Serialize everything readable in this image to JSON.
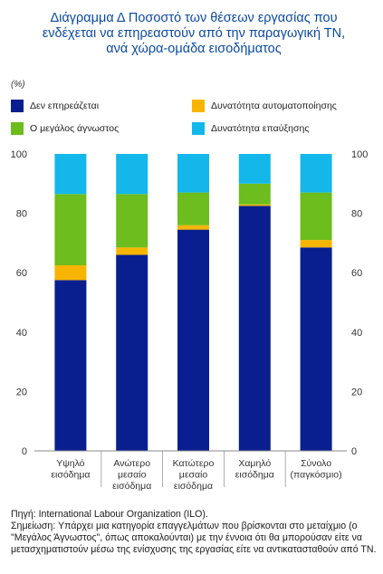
{
  "title_lines": [
    "Διάγραμμα Δ Ποσοστό των θέσεων εργασίας που",
    "ενδέχεται να επηρεαστούν από την παραγωγική ΤΝ,",
    "ανά χώρα-ομάδα εισοδήματος"
  ],
  "unit": "(%)",
  "colors": {
    "not_affected": "#0a1f8f",
    "automation": "#f8b500",
    "big_unknown": "#6cbd1d",
    "augmentation": "#14b7ea"
  },
  "legend": [
    {
      "key": "not_affected",
      "label": "Δεν επηρεάζεται"
    },
    {
      "key": "automation",
      "label": "Δυνατότητα αυτοματοποίησης"
    },
    {
      "key": "big_unknown",
      "label": "Ο μεγάλος άγνωστος"
    },
    {
      "key": "augmentation",
      "label": "Δυνατότητα επαύξησης"
    }
  ],
  "chart_data": {
    "type": "bar",
    "stacked": true,
    "categories": [
      [
        "Υψηλό",
        "εισόδημα"
      ],
      [
        "Ανώτερο",
        "μεσαίο",
        "εισόδημα"
      ],
      [
        "Κατώτερο",
        "μεσαίο",
        "εισόδημα"
      ],
      [
        "Χαμηλό",
        "εισόδημα"
      ],
      [
        "Σύνολο",
        "(παγκόσμιο)"
      ]
    ],
    "series": [
      {
        "key": "not_affected",
        "name": "Δεν επηρεάζεται",
        "values": [
          57.5,
          66.0,
          74.5,
          82.5,
          68.5
        ]
      },
      {
        "key": "automation",
        "name": "Δυνατότητα αυτοματοποίησης",
        "values": [
          5.0,
          2.5,
          1.5,
          0.5,
          2.5
        ]
      },
      {
        "key": "big_unknown",
        "name": "Ο μεγάλος άγνωστος",
        "values": [
          24.0,
          18.0,
          11.0,
          7.0,
          16.0
        ]
      },
      {
        "key": "augmentation",
        "name": "Δυνατότητα επαύξησης",
        "values": [
          13.5,
          13.5,
          13.0,
          10.0,
          13.0
        ]
      }
    ],
    "ylim": [
      0,
      100
    ],
    "yticks": [
      0,
      20,
      40,
      60,
      80,
      100
    ],
    "y_axis_both_sides": true,
    "grid": false,
    "legend_position": "top"
  },
  "notes": [
    "Πηγή: International Labour Organization (ILO).",
    "Σημείωση: Υπάρχει μια κατηγορία επαγγελμάτων που βρίσκονται στο μεταίχμιο (ο \"Μεγάλος Άγνωστος\", όπως αποκαλούνται) με την έννοια ότι θα μπορούσαν είτε να μετασχηματιστούν μέσω της ενίσχυσης της εργασίας είτε να αντικατασταθούν από ΤΝ."
  ]
}
